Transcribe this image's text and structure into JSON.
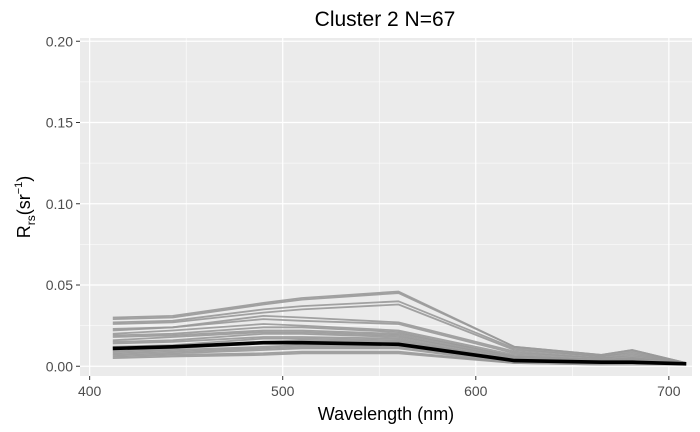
{
  "chart_data": {
    "type": "line",
    "title": "Cluster 2 N=67",
    "xlabel": "Wavelength (nm)",
    "ylabel": {
      "main": "R",
      "sub": "rs",
      "unit_open": "(sr",
      "unit_sup": "−1",
      "unit_close": ")"
    },
    "xlim": [
      395,
      712
    ],
    "ylim": [
      -0.006,
      0.202
    ],
    "x_ticks": [
      400,
      500,
      600,
      700
    ],
    "y_ticks": [
      0.0,
      0.05,
      0.1,
      0.15,
      0.2
    ],
    "y_tick_labels": [
      "0.00",
      "0.05",
      "0.10",
      "0.15",
      "0.20"
    ],
    "grid": true,
    "background": "#ebebeb",
    "grid_color": "#ffffff",
    "x": [
      412,
      443,
      490,
      510,
      560,
      620,
      665,
      681,
      709
    ],
    "series": [
      {
        "values": [
          0.03,
          0.031,
          0.039,
          0.042,
          0.046,
          0.012,
          0.007,
          0.01,
          0.002
        ],
        "color": "#999999"
      },
      {
        "values": [
          0.029,
          0.03,
          0.038,
          0.041,
          0.045,
          0.012,
          0.007,
          0.01,
          0.002
        ],
        "color": "#999999"
      },
      {
        "values": [
          0.027,
          0.028,
          0.035,
          0.037,
          0.04,
          0.011,
          0.006,
          0.009,
          0.002
        ],
        "color": "#999999"
      },
      {
        "values": [
          0.026,
          0.027,
          0.033,
          0.035,
          0.038,
          0.01,
          0.006,
          0.008,
          0.002
        ],
        "color": "#999999"
      },
      {
        "values": [
          0.023,
          0.024,
          0.031,
          0.03,
          0.027,
          0.009,
          0.005,
          0.007,
          0.002
        ],
        "color": "#999999"
      },
      {
        "values": [
          0.022,
          0.024,
          0.029,
          0.028,
          0.026,
          0.008,
          0.005,
          0.006,
          0.002
        ],
        "color": "#999999"
      },
      {
        "values": [
          0.02,
          0.022,
          0.026,
          0.025,
          0.022,
          0.007,
          0.004,
          0.005,
          0.002
        ],
        "color": "#999999"
      },
      {
        "values": [
          0.019,
          0.02,
          0.024,
          0.024,
          0.021,
          0.006,
          0.004,
          0.005,
          0.002
        ],
        "color": "#999999"
      },
      {
        "values": [
          0.018,
          0.019,
          0.022,
          0.022,
          0.02,
          0.006,
          0.004,
          0.004,
          0.002
        ],
        "color": "#999999"
      },
      {
        "values": [
          0.016,
          0.018,
          0.021,
          0.021,
          0.019,
          0.005,
          0.003,
          0.004,
          0.002
        ],
        "color": "#999999"
      },
      {
        "values": [
          0.015,
          0.016,
          0.02,
          0.02,
          0.018,
          0.005,
          0.003,
          0.004,
          0.001
        ],
        "color": "#999999"
      },
      {
        "values": [
          0.014,
          0.015,
          0.018,
          0.018,
          0.017,
          0.004,
          0.003,
          0.003,
          0.001
        ],
        "color": "#999999"
      },
      {
        "values": [
          0.012,
          0.013,
          0.017,
          0.017,
          0.016,
          0.004,
          0.003,
          0.003,
          0.001
        ],
        "color": "#999999"
      },
      {
        "values": [
          0.011,
          0.012,
          0.015,
          0.016,
          0.015,
          0.004,
          0.002,
          0.003,
          0.001
        ],
        "color": "#999999"
      },
      {
        "values": [
          0.01,
          0.011,
          0.014,
          0.014,
          0.014,
          0.003,
          0.002,
          0.002,
          0.001
        ],
        "color": "#999999"
      },
      {
        "values": [
          0.009,
          0.01,
          0.012,
          0.013,
          0.013,
          0.003,
          0.002,
          0.002,
          0.001
        ],
        "color": "#999999"
      },
      {
        "values": [
          0.008,
          0.009,
          0.011,
          0.012,
          0.012,
          0.003,
          0.002,
          0.002,
          0.001
        ],
        "color": "#999999"
      },
      {
        "values": [
          0.007,
          0.008,
          0.01,
          0.011,
          0.011,
          0.002,
          0.002,
          0.002,
          0.001
        ],
        "color": "#999999"
      },
      {
        "values": [
          0.006,
          0.007,
          0.008,
          0.009,
          0.009,
          0.002,
          0.001,
          0.002,
          0.001
        ],
        "color": "#999999"
      },
      {
        "values": [
          0.005,
          0.006,
          0.007,
          0.008,
          0.008,
          0.002,
          0.001,
          0.001,
          0.001
        ],
        "color": "#999999"
      },
      {
        "values": [
          0.011,
          0.012,
          0.0145,
          0.0145,
          0.0135,
          0.0035,
          0.0025,
          0.0025,
          0.0015
        ],
        "color": "#000000",
        "mean": true
      }
    ]
  }
}
